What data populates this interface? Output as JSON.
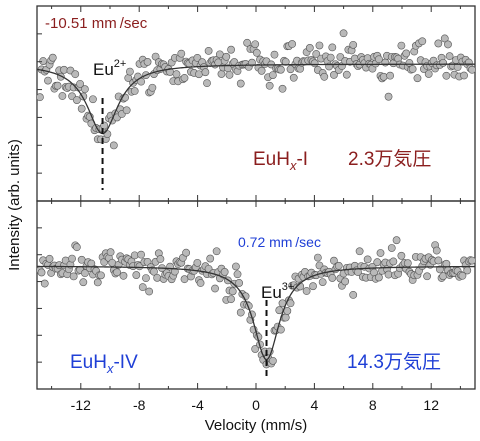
{
  "chart_data": {
    "type": "scatter",
    "xlabel": "Velocity (mm/s)",
    "ylabel": "Intensity (arb. units)",
    "xlim": [
      -15,
      15
    ],
    "xticks": [
      -12,
      -8,
      -4,
      0,
      4,
      8,
      12
    ],
    "grid": false,
    "legend": "none",
    "panels": [
      {
        "id": "top",
        "velocity_label": "-10.51 mm /sec",
        "site_label": "Eu",
        "site_charge": "2+",
        "sample_prefix": "EuH",
        "sample_sub": "x",
        "sample_suffix": "-I",
        "pressure_label": "2.3万気圧",
        "center": -10.51,
        "fit": {
          "baseline": 1.0,
          "depth": 0.58,
          "width": 2.6
        },
        "colors": {
          "velocity_label": "#8b1e1e",
          "sample_label": "#8b1e1e",
          "pressure_label": "#8b1e1e"
        }
      },
      {
        "id": "bottom",
        "velocity_label": "0.72 mm /sec",
        "site_label": "Eu",
        "site_charge": "3+",
        "sample_prefix": "EuH",
        "sample_sub": "x",
        "sample_suffix": "-IV",
        "pressure_label": "14.3万気圧",
        "center": 0.72,
        "fit": {
          "baseline": 1.0,
          "depth": 0.78,
          "width": 2.2
        },
        "colors": {
          "velocity_label": "#1f3fd6",
          "sample_label": "#1f3fd6",
          "pressure_label": "#1f3fd6"
        }
      }
    ]
  },
  "colors": {
    "points_fill": "#b9b9b9",
    "points_stroke": "#555555",
    "fit_line": "#333333",
    "axis": "#333333"
  }
}
